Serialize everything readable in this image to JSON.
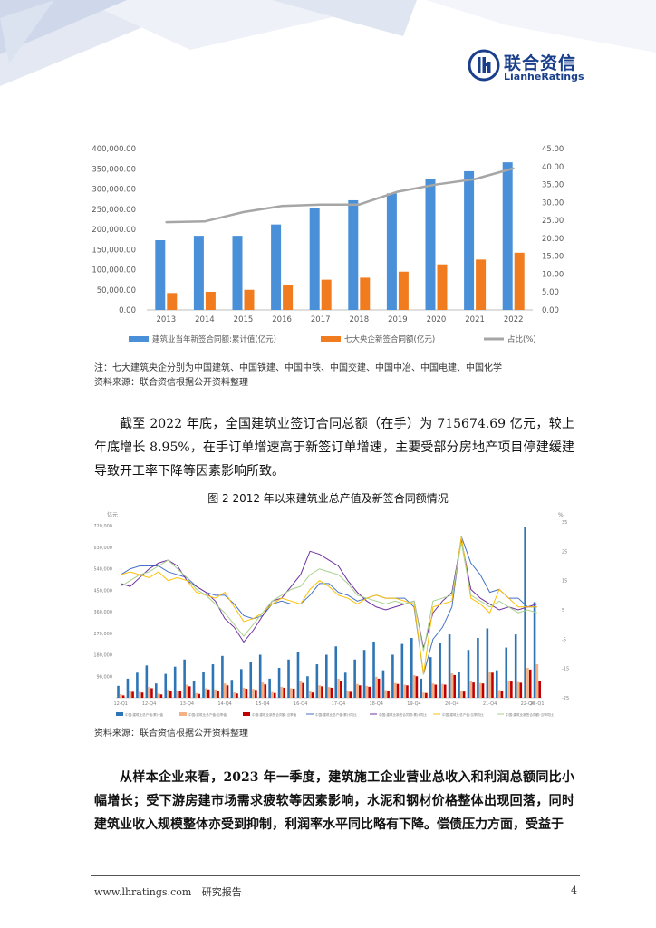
{
  "brand": {
    "name_cn": "联合资信",
    "name_en": "LianheRatings",
    "accent": "#1a3f8a"
  },
  "chart1_meta": {
    "legend": [
      "建筑业当年新签合同额:累计值(亿元)",
      "七大央企新签合同额(亿元)",
      "占比(%)"
    ],
    "left_ticks": [
      "400,000.00",
      "350,000.00",
      "300,000.00",
      "250,000.00",
      "200,000.00",
      "150,000.00",
      "100,000.00",
      "50,000.00",
      "0.00"
    ],
    "right_ticks": [
      "45.00",
      "40.00",
      "35.00",
      "30.00",
      "25.00",
      "20.00",
      "15.00",
      "10.00",
      "5.00",
      "0.00"
    ]
  },
  "chart_data": [
    {
      "type": "bar",
      "categories": [
        "2013",
        "2014",
        "2015",
        "2016",
        "2017",
        "2018",
        "2019",
        "2020",
        "2021",
        "2022"
      ],
      "series": [
        {
          "name": "建筑业当年新签合同额:累计值(亿元)",
          "type": "bar",
          "axis": "left",
          "color": "#4a90d9",
          "values": [
            173000,
            184000,
            184000,
            212000,
            254000,
            272000,
            289000,
            325000,
            344000,
            366000
          ]
        },
        {
          "name": "七大央企新签合同额(亿元)",
          "type": "bar",
          "axis": "left",
          "color": "#f07c1f",
          "values": [
            42000,
            45000,
            50000,
            61000,
            75000,
            80000,
            95000,
            113000,
            125000,
            142000
          ]
        },
        {
          "name": "占比(%)",
          "type": "line",
          "axis": "right",
          "color": "#a6a6a6",
          "values": [
            24.5,
            24.7,
            27.3,
            29.0,
            29.4,
            29.4,
            33.0,
            35.0,
            36.5,
            39.5
          ]
        }
      ],
      "ylim": [
        0,
        400000
      ],
      "y2lim": [
        0,
        45
      ],
      "grid": false,
      "legend_position": "bottom"
    },
    {
      "type": "bar",
      "title": "图 2  2012 年以来建筑业总产值及新签合同额情况",
      "categories": [
        "12-Q1",
        "12-Q2",
        "12-Q3",
        "12-Q4",
        "13-Q1",
        "13-Q2",
        "13-Q3",
        "13-Q4",
        "14-Q1",
        "14-Q2",
        "14-Q3",
        "14-Q4",
        "15-Q1",
        "15-Q2",
        "15-Q3",
        "15-Q4",
        "16-Q1",
        "16-Q2",
        "16-Q3",
        "16-Q4",
        "17-Q1",
        "17-Q2",
        "17-Q3",
        "17-Q4",
        "18-Q1",
        "18-Q2",
        "18-Q3",
        "18-Q4",
        "19-Q1",
        "19-Q2",
        "19-Q3",
        "19-Q4",
        "20-Q1",
        "20-Q2",
        "20-Q3",
        "20-Q4",
        "21-Q1",
        "21-Q2",
        "21-Q3",
        "21-Q4",
        "22-Q1",
        "22-Q2",
        "22-Q3",
        "22-Q4",
        "23-Q1"
      ],
      "x_tick_labels": [
        "12-Q1",
        "12-Q4",
        "13-Q4",
        "14-Q4",
        "15-Q4",
        "16-Q4",
        "17-Q4",
        "18-Q4",
        "19-Q4",
        "20-Q4",
        "21-Q4",
        "22-Q4",
        "23-Q1"
      ],
      "series": [
        {
          "name": "中国:建筑业总产值:累计值",
          "type": "bar",
          "color": "#2e75b6",
          "values": [
            50000,
            80000,
            105000,
            135000,
            60000,
            100000,
            130000,
            160000,
            70000,
            110000,
            140000,
            175000,
            75000,
            120000,
            150000,
            180000,
            80000,
            125000,
            160000,
            190000,
            90000,
            140000,
            180000,
            215000,
            105000,
            160000,
            200000,
            235000,
            115000,
            180000,
            225000,
            250000,
            80000,
            170000,
            230000,
            265000,
            110000,
            200000,
            250000,
            290000,
            115000,
            210000,
            265000,
            715000,
            400000
          ]
        },
        {
          "name": "中国:建筑业总产值:当季值",
          "type": "bar",
          "color": "#f4b183",
          "values": [
            15000,
            30000,
            25000,
            45000,
            18000,
            35000,
            30000,
            55000,
            20000,
            40000,
            35000,
            60000,
            22000,
            42000,
            37000,
            64000,
            24000,
            46000,
            40000,
            70000,
            27000,
            52000,
            45000,
            80000,
            30000,
            58000,
            50000,
            88000,
            32000,
            62000,
            55000,
            95000,
            22000,
            60000,
            58000,
            102000,
            30000,
            70000,
            62000,
            110000,
            32000,
            72000,
            66000,
            125000,
            140000
          ]
        },
        {
          "name": "中国:建筑业新签合同额:当季值",
          "type": "bar",
          "color": "#c00000",
          "values": [
            10000,
            25000,
            22000,
            40000,
            14000,
            30000,
            28000,
            48000,
            16000,
            35000,
            30000,
            52000,
            18000,
            38000,
            33000,
            56000,
            20000,
            42000,
            38000,
            62000,
            22000,
            48000,
            42000,
            72000,
            25000,
            52000,
            46000,
            80000,
            28000,
            58000,
            52000,
            90000,
            20000,
            55000,
            55000,
            95000,
            26000,
            64000,
            60000,
            105000,
            28000,
            68000,
            63000,
            118000,
            70000
          ]
        },
        {
          "name": "中国:建筑业总产值:累计同比",
          "type": "line",
          "color": "#4472c4",
          "values": [
            17,
            19,
            20,
            20,
            20,
            18,
            17,
            16,
            13,
            11,
            10,
            10,
            7,
            3,
            2,
            3,
            7,
            8,
            7,
            7,
            10,
            14,
            14,
            11,
            10,
            8,
            9,
            10,
            9,
            9,
            9,
            6,
            -17,
            -5,
            -1,
            6,
            30,
            21,
            17,
            11,
            12,
            9,
            9,
            6,
            6
          ]
        },
        {
          "name": "中国:建筑业新签合同额:累计同比",
          "type": "line",
          "color": "#7030a0",
          "values": [
            14,
            13,
            16,
            19,
            21,
            22,
            20,
            15,
            13,
            11,
            8,
            2,
            -1,
            -6,
            -2,
            3,
            8,
            9,
            13,
            17,
            25,
            24,
            22,
            20,
            15,
            11,
            8,
            6,
            5,
            6,
            7,
            8,
            -8,
            4,
            8,
            11,
            29,
            12,
            9,
            7,
            5,
            6,
            5,
            6,
            7
          ]
        },
        {
          "name": "中国:建筑业总产值:当季同比",
          "type": "line",
          "color": "#ffc000",
          "values": [
            17,
            18,
            17,
            16,
            18,
            15,
            16,
            15,
            11,
            10,
            9,
            11,
            6,
            1,
            2,
            4,
            7,
            9,
            8,
            7,
            12,
            15,
            13,
            10,
            9,
            7,
            9,
            10,
            9,
            9,
            8,
            7,
            -17,
            6,
            7,
            8,
            30,
            9,
            7,
            4,
            12,
            9,
            6,
            6,
            6
          ]
        },
        {
          "name": "中国:建筑业新签合同额:当季同比",
          "type": "line",
          "color": "#a9d18e",
          "values": [
            13,
            15,
            17,
            18,
            20,
            22,
            19,
            16,
            12,
            10,
            7,
            4,
            0,
            -4,
            0,
            4,
            8,
            10,
            12,
            13,
            17,
            19,
            18,
            17,
            14,
            10,
            9,
            8,
            7,
            8,
            7,
            8,
            -9,
            8,
            9,
            10,
            28,
            10,
            8,
            6,
            8,
            6,
            4,
            5,
            4
          ]
        }
      ],
      "grid": false,
      "legend_position": "bottom"
    }
  ],
  "chart2_meta": {
    "left_unit": "亿元",
    "right_unit": "%",
    "left_ticks": [
      "720,000",
      "630,000",
      "540,000",
      "450,000",
      "360,000",
      "270,000",
      "180,000",
      "90,000"
    ],
    "right_ticks": [
      "35",
      "25",
      "15",
      "5",
      "-5",
      "-15",
      "-25"
    ],
    "legend": [
      "中国:建筑业总产值:累计值",
      "中国:建筑业总产值:当季值",
      "中国:建筑业新签合同额:当季值",
      "中国:建筑业总产值:累计同比",
      "中国:建筑业新签合同额:累计同比",
      "中国:建筑业总产值:当季同比",
      "中国:建筑业新签合同额:当季同比"
    ]
  },
  "notes": {
    "note1": "注：七大建筑央企分别为中国建筑、中国铁建、中国中铁、中国交建、中国中冶、中国电建、中国化学",
    "source1": "资料来源：联合资信根据公开资料整理",
    "source2": "资料来源：联合资信根据公开资料整理"
  },
  "paragraphs": {
    "p1": "截至 2022 年底，全国建筑业签订合同总额（在手）为 715674.69 亿元，较上年底增长 8.95%，在手订单增速高于新签订单增速，主要受部分房地产项目停建缓建导致开工率下降等因素影响所致。",
    "p2": "从样本企业来看，2023 年一季度，建筑施工企业营业总收入和利润总额同比小幅增长；受下游房建市场需求疲软等因素影响，水泥和钢材价格整体出现回落，同时建筑业收入规模整体亦受到抑制，利润率水平同比略有下降。偿债压力方面，受益于"
  },
  "figure": {
    "title": "图 2   2012 年以来建筑业总产值及新签合同额情况"
  },
  "footer": {
    "url": "www.lhratings.com",
    "label": "研究报告",
    "page": "4"
  }
}
